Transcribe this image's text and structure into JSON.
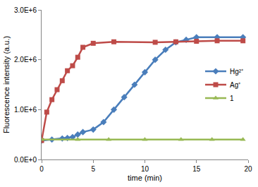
{
  "chart_data": {
    "type": "line",
    "x_label": "time (min)",
    "y_label": "Fluorescence intensity (a.u.)",
    "xlim": [
      0,
      20
    ],
    "xticks": [
      0,
      5,
      10,
      15,
      20
    ],
    "ylim": [
      0,
      3000000
    ],
    "yticks": [
      {
        "value": 0,
        "label": "0.0E+0"
      },
      {
        "value": 1000000,
        "label": "1.0E+6"
      },
      {
        "value": 2000000,
        "label": "2.0E+6"
      },
      {
        "value": 3000000,
        "label": "3.0E+6"
      }
    ],
    "grid": false,
    "legend": "right",
    "series": [
      {
        "name": "Hg²⁺",
        "color": "#4a7ebb",
        "marker": "diamond",
        "x": [
          0,
          1,
          2,
          2.5,
          3,
          3.5,
          4,
          5,
          6,
          7,
          8,
          9,
          10,
          11,
          12,
          13,
          14,
          15,
          17,
          19.5
        ],
        "values": [
          380000,
          400000,
          420000,
          430000,
          450000,
          500000,
          550000,
          600000,
          750000,
          1000000,
          1250000,
          1500000,
          1750000,
          2000000,
          2200000,
          2350000,
          2400000,
          2450000,
          2450000,
          2450000
        ]
      },
      {
        "name": "Ag⁺",
        "color": "#be4b48",
        "marker": "square",
        "x": [
          0,
          0.5,
          1,
          1.5,
          2,
          2.5,
          3,
          3.5,
          4,
          5,
          7,
          11,
          13,
          15,
          17,
          19.5
        ],
        "values": [
          380000,
          950000,
          1200000,
          1400000,
          1580000,
          1780000,
          1880000,
          2050000,
          2250000,
          2330000,
          2360000,
          2350000,
          2360000,
          2370000,
          2380000,
          2380000
        ]
      },
      {
        "name": "1",
        "color": "#98b954",
        "marker": "triangle-up",
        "x": [
          0,
          3.5,
          6.5,
          10,
          13.5,
          16.5,
          19.5
        ],
        "values": [
          400000,
          400000,
          400000,
          400000,
          400000,
          400000,
          400000
        ]
      }
    ]
  }
}
